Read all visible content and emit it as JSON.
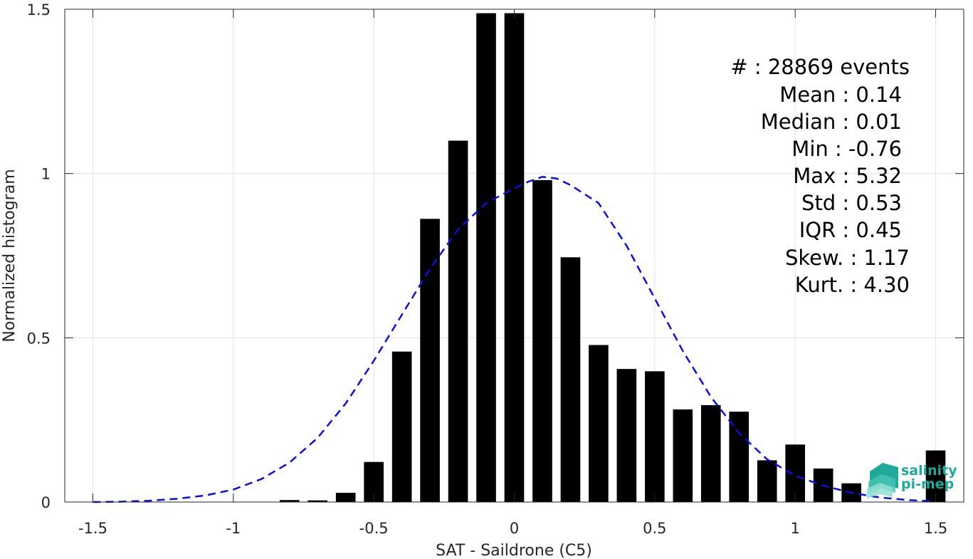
{
  "chart_data": {
    "type": "bar",
    "xlabel": "SAT - Saildrone (C5)",
    "ylabel": "Normalized histogram",
    "xlim": [
      -1.6,
      1.6
    ],
    "ylim": [
      0,
      1.5
    ],
    "grid": true,
    "x_ticks": [
      -1.5,
      -1,
      -0.5,
      0,
      0.5,
      1,
      1.5
    ],
    "x_tick_labels": [
      "-1.5",
      "-1",
      "-0.5",
      "0",
      "0.5",
      "1",
      "1.5"
    ],
    "y_ticks": [
      0,
      0.5,
      1,
      1.5
    ],
    "y_tick_labels": [
      "0",
      "0.5",
      "1",
      "1.5"
    ],
    "bar_width": 0.07,
    "series": [
      {
        "type": "bar",
        "color": "#000000",
        "x": [
          -0.8,
          -0.7,
          -0.6,
          -0.5,
          -0.4,
          -0.3,
          -0.2,
          -0.1,
          0.0,
          0.1,
          0.2,
          0.3,
          0.4,
          0.5,
          0.6,
          0.7,
          0.8,
          0.9,
          1.0,
          1.1,
          1.2,
          1.3,
          1.4,
          1.5
        ],
        "values": [
          0.006,
          0.005,
          0.028,
          0.122,
          0.458,
          0.862,
          1.1,
          1.488,
          1.488,
          0.98,
          0.745,
          0.478,
          0.405,
          0.398,
          0.282,
          0.295,
          0.275,
          0.127,
          0.175,
          0.102,
          0.057,
          0.0,
          0.0,
          0.157
        ]
      },
      {
        "type": "line",
        "style": "dashed",
        "color": "#0a10e0",
        "x": [
          -1.5,
          -1.4,
          -1.3,
          -1.2,
          -1.1,
          -1.0,
          -0.9,
          -0.8,
          -0.7,
          -0.6,
          -0.5,
          -0.4,
          -0.3,
          -0.2,
          -0.1,
          0.0,
          0.05,
          0.1,
          0.15,
          0.2,
          0.3,
          0.4,
          0.5,
          0.6,
          0.7,
          0.8,
          0.9,
          1.0,
          1.1,
          1.2,
          1.3,
          1.4,
          1.5
        ],
        "values": [
          0.0,
          0.001,
          0.004,
          0.01,
          0.02,
          0.038,
          0.07,
          0.12,
          0.195,
          0.3,
          0.43,
          0.57,
          0.71,
          0.83,
          0.91,
          0.955,
          0.975,
          0.99,
          0.985,
          0.965,
          0.91,
          0.78,
          0.62,
          0.46,
          0.32,
          0.21,
          0.13,
          0.08,
          0.05,
          0.028,
          0.014,
          0.006,
          0.002
        ]
      }
    ]
  },
  "stats": {
    "events": "#  : 28869 events",
    "mean": "Mean : 0.14",
    "median": "Median : 0.01",
    "min": "Min : -0.76",
    "max": "Max : 5.32",
    "std": "Std : 0.53",
    "iqr": "IQR : 0.45",
    "skew": "Skew. : 1.17",
    "kurt": "Kurt. : 4.30"
  },
  "logo": {
    "line1": "salinity",
    "line2": "pi-mep",
    "colors": {
      "primary": "#1fa99a",
      "secondary": "#6fd3c3"
    }
  }
}
